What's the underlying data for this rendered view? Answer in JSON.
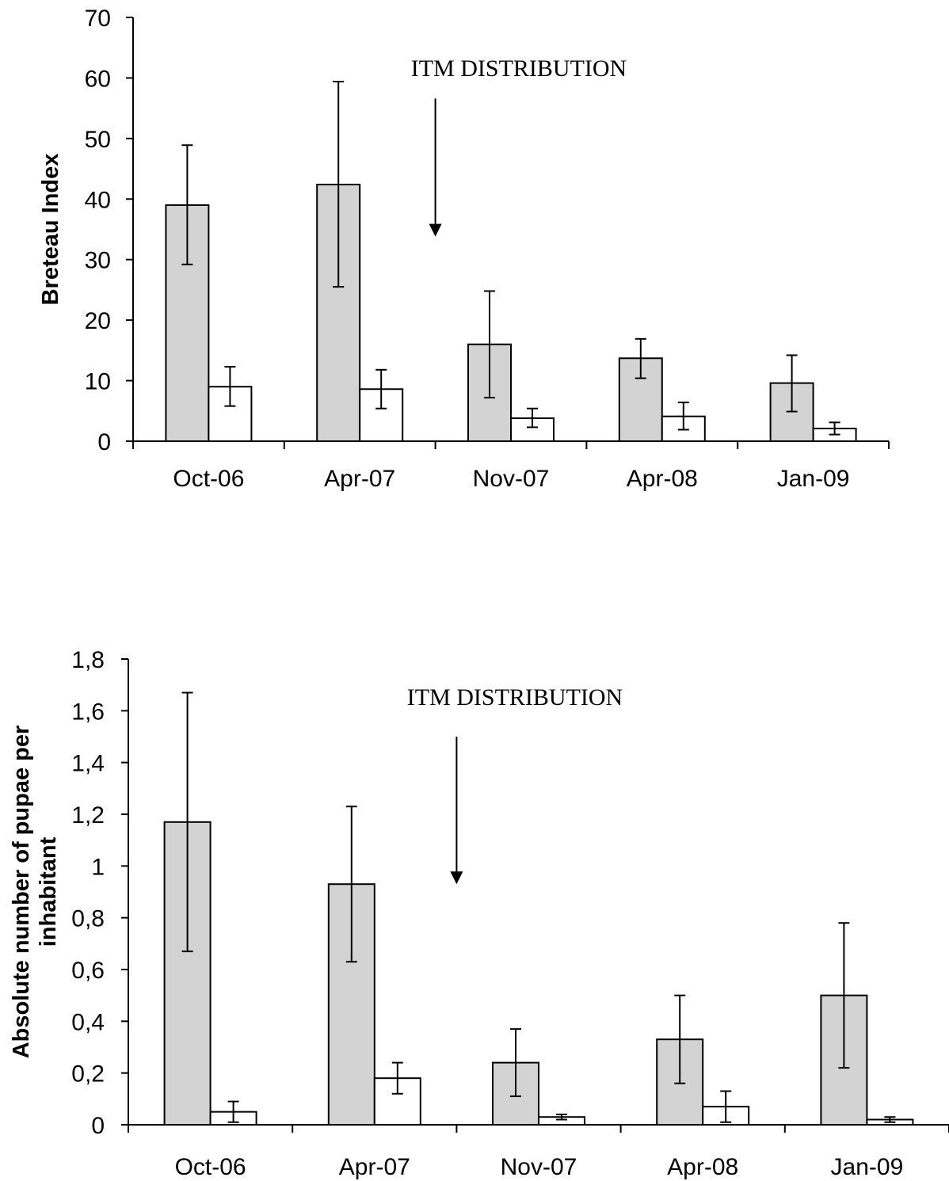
{
  "chart_data": [
    {
      "type": "bar",
      "categories": [
        "Oct-06",
        "Apr-07",
        "Nov-07",
        "Apr-08",
        "Jan-09"
      ],
      "ylabel": "Breteau Index",
      "xlabel": "",
      "ylim": [
        0,
        70
      ],
      "yticks": [
        0,
        10,
        20,
        30,
        40,
        50,
        60,
        70
      ],
      "ytick_labels": [
        "0",
        "10",
        "20",
        "30",
        "40",
        "50",
        "60",
        "70"
      ],
      "grid": false,
      "series": [
        {
          "fill": "#d3d3d3",
          "values": [
            39.0,
            42.4,
            16.0,
            13.7,
            9.6
          ],
          "err_low": [
            29.2,
            25.5,
            7.2,
            10.4,
            4.9
          ],
          "err_high": [
            48.9,
            59.4,
            24.8,
            16.9,
            14.2
          ]
        },
        {
          "fill": "#ffffff",
          "values": [
            9.0,
            8.6,
            3.8,
            4.1,
            2.1
          ],
          "err_low": [
            5.8,
            5.4,
            2.3,
            1.9,
            1.1
          ],
          "err_high": [
            12.3,
            11.8,
            5.4,
            6.4,
            3.1
          ]
        }
      ],
      "annotation": {
        "text": "ITM DISTRIBUTION",
        "arrow_x_position": 2.0,
        "arrow_from_y": 56.6,
        "arrow_to_y": 33.8
      }
    },
    {
      "type": "bar",
      "categories": [
        "Oct-06",
        "Apr-07",
        "Nov-07",
        "Apr-08",
        "Jan-09"
      ],
      "ylabel": "Absolute number of pupae per inhabitant",
      "ylabel_lines": [
        "Absolute number of pupae per",
        "inhabitant"
      ],
      "xlabel": "",
      "ylim": [
        0,
        1.8
      ],
      "yticks": [
        0,
        0.2,
        0.4,
        0.6,
        0.8,
        1,
        1.2,
        1.4,
        1.6,
        1.8
      ],
      "ytick_labels": [
        "0",
        "0,2",
        "0,4",
        "0,6",
        "0,8",
        "1",
        "1,2",
        "1,4",
        "1,6",
        "1,8"
      ],
      "grid": false,
      "series": [
        {
          "fill": "#d3d3d3",
          "values": [
            1.17,
            0.93,
            0.24,
            0.33,
            0.5
          ],
          "err_low": [
            0.67,
            0.63,
            0.11,
            0.16,
            0.22
          ],
          "err_high": [
            1.67,
            1.23,
            0.37,
            0.5,
            0.78
          ]
        },
        {
          "fill": "#ffffff",
          "values": [
            0.05,
            0.18,
            0.03,
            0.07,
            0.02
          ],
          "err_low": [
            0.01,
            0.12,
            0.02,
            0.01,
            0.01
          ],
          "err_high": [
            0.09,
            0.24,
            0.04,
            0.13,
            0.03
          ]
        }
      ],
      "annotation": {
        "text": "ITM DISTRIBUTION",
        "arrow_x_position": 2.0,
        "arrow_from_y": 1.5,
        "arrow_to_y": 0.93
      }
    }
  ]
}
